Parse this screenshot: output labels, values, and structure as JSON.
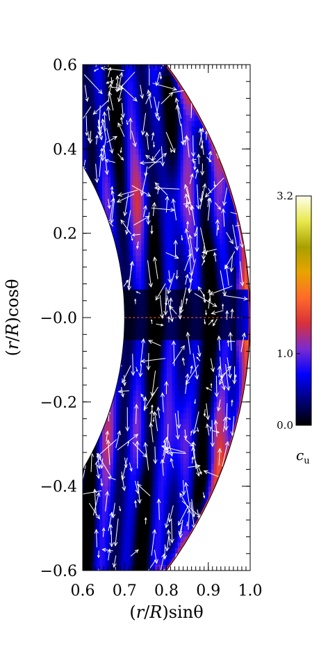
{
  "chart_data": {
    "type": "heatmap",
    "xlabel_parts": [
      "(",
      "r",
      "/",
      "R",
      ")sin",
      "θ"
    ],
    "ylabel_parts": [
      "(",
      "r",
      "/",
      "R",
      ")cos",
      "θ"
    ],
    "x_ticks": [
      "0.6",
      "0.7",
      "0.8",
      "0.9",
      "1.0"
    ],
    "x_tick_values": [
      0.6,
      0.7,
      0.8,
      0.9,
      1.0
    ],
    "y_ticks": [
      "0.6",
      "0.4",
      "0.2",
      "−0.0",
      "−0.2",
      "−0.4",
      "−0.6"
    ],
    "y_tick_values": [
      0.6,
      0.4,
      0.2,
      0.0,
      -0.2,
      -0.4,
      -0.6
    ],
    "xlim": [
      0.6,
      1.0
    ],
    "ylim": [
      -0.6,
      0.6
    ],
    "domain": {
      "r_inner": 0.7,
      "r_outer": 1.0
    },
    "colorbar": {
      "label_main": "c",
      "label_sub": "u",
      "ticks": [
        "3.2",
        "1.0",
        "0.0"
      ],
      "tick_values": [
        3.2,
        1.0,
        0.0
      ],
      "range": [
        0.0,
        3.2
      ],
      "colors": [
        "#000000",
        "#00007a",
        "#0000ff",
        "#7a2bd0",
        "#d8303b",
        "#ff6a28",
        "#e8a400",
        "#a8a000",
        "#e8e84c",
        "#ffffee"
      ]
    },
    "vector_color": "#ffffff",
    "equator_line_color": "#ff6a28"
  }
}
